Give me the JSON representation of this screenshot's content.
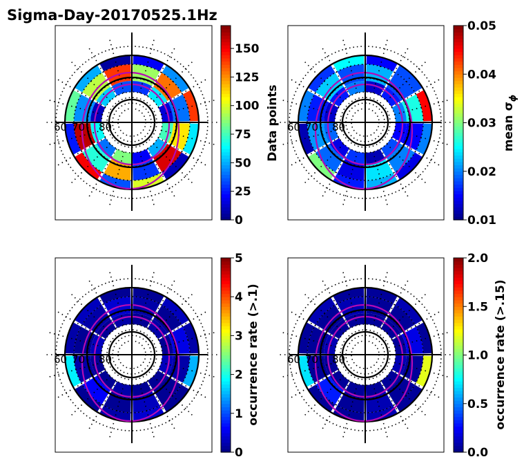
{
  "title": "Sigma-Day-20170525.1Hz",
  "panels": [
    {
      "id": "data-points",
      "colorbar": {
        "label": "Data points",
        "ticks": [
          "0",
          "25",
          "50",
          "75",
          "100",
          "125",
          "150"
        ],
        "range": [
          0,
          170
        ]
      },
      "lat_labels": [
        "60",
        "70",
        "80"
      ]
    },
    {
      "id": "mean-sigma-phi",
      "colorbar": {
        "label": "mean σ",
        "label_sub": "ϕ",
        "ticks": [
          "0.01",
          "0.02",
          "0.03",
          "0.04",
          "0.05"
        ],
        "range": [
          0.01,
          0.05
        ]
      },
      "lat_labels": [
        "60",
        "70",
        "80"
      ]
    },
    {
      "id": "occurrence-rate-gt-0.1",
      "colorbar": {
        "label": "occurrence rate (>.1)",
        "ticks": [
          "0",
          "1",
          "2",
          "3",
          "4",
          "5"
        ],
        "range": [
          0,
          5
        ]
      },
      "lat_labels": [
        "60",
        "70",
        "80"
      ]
    },
    {
      "id": "occurrence-rate-gt-0.15",
      "colorbar": {
        "label": "occurrence rate (>.15)",
        "ticks": [
          "0.0",
          "0.5",
          "1.0",
          "1.5",
          "2.0"
        ],
        "range": [
          0,
          2
        ]
      },
      "lat_labels": [
        "60",
        "70",
        "80"
      ]
    }
  ],
  "chart_data": {
    "type": "heatmap",
    "projection": "polar (magnetic latitude / MLT)",
    "title": "Sigma-Day-20170525.1Hz",
    "latitude_circles": [
      60,
      70,
      80
    ],
    "series": [
      {
        "name": "Data points",
        "cmap": "jet",
        "vmin": 0,
        "vmax": 170,
        "ring_values": [
          [
            20,
            45,
            140,
            60,
            10,
            100,
            35,
            150,
            25,
            80,
            50,
            5
          ],
          [
            90,
            130,
            40,
            110,
            155,
            30,
            120,
            70,
            160,
            45,
            95,
            140
          ],
          [
            30,
            60,
            15,
            75,
            50,
            20,
            85,
            40,
            65,
            10,
            55,
            35
          ]
        ]
      },
      {
        "name": "mean σϕ",
        "cmap": "jet",
        "vmin": 0.01,
        "vmax": 0.05,
        "ring_values": [
          [
            0.015,
            0.018,
            0.045,
            0.02,
            0.014,
            0.022,
            0.016,
            0.03,
            0.012,
            0.02,
            0.017,
            0.025
          ],
          [
            0.022,
            0.018,
            0.026,
            0.015,
            0.02,
            0.024,
            0.014,
            0.019,
            0.021,
            0.016,
            0.023,
            0.018
          ],
          [
            0.013,
            0.016,
            0.02,
            0.015,
            0.018,
            0.012,
            0.017,
            0.014,
            0.019,
            0.013,
            0.016,
            0.02
          ]
        ]
      },
      {
        "name": "occurrence rate (>.1)",
        "cmap": "jet",
        "vmin": 0,
        "vmax": 5,
        "ring_values": [
          [
            0.1,
            0.3,
            0.2,
            1.5,
            0.1,
            0.4,
            0.2,
            0.1,
            1.8,
            0.2,
            0.3,
            0.1
          ],
          [
            0.2,
            0.1,
            0.5,
            0.2,
            0.1,
            0.3,
            0.1,
            0.6,
            0.2,
            0.1,
            0.2,
            0.4
          ],
          [
            0.1,
            0.2,
            0.1,
            0.3,
            0.1,
            0.1,
            0.2,
            0.1,
            0.1,
            0.3,
            0.1,
            0.2
          ]
        ]
      },
      {
        "name": "occurrence rate (>.15)",
        "cmap": "jet",
        "vmin": 0,
        "vmax": 2,
        "ring_values": [
          [
            0.05,
            0.1,
            0.05,
            1.2,
            0.05,
            0.1,
            0.05,
            0.05,
            0.7,
            0.05,
            0.1,
            0.05
          ],
          [
            0.05,
            0.05,
            0.2,
            0.05,
            0.05,
            0.1,
            0.05,
            0.3,
            0.05,
            0.05,
            0.05,
            0.1
          ],
          [
            0.05,
            0.05,
            0.05,
            0.1,
            0.05,
            0.05,
            0.05,
            0.05,
            0.05,
            0.1,
            0.05,
            0.05
          ]
        ]
      }
    ]
  }
}
